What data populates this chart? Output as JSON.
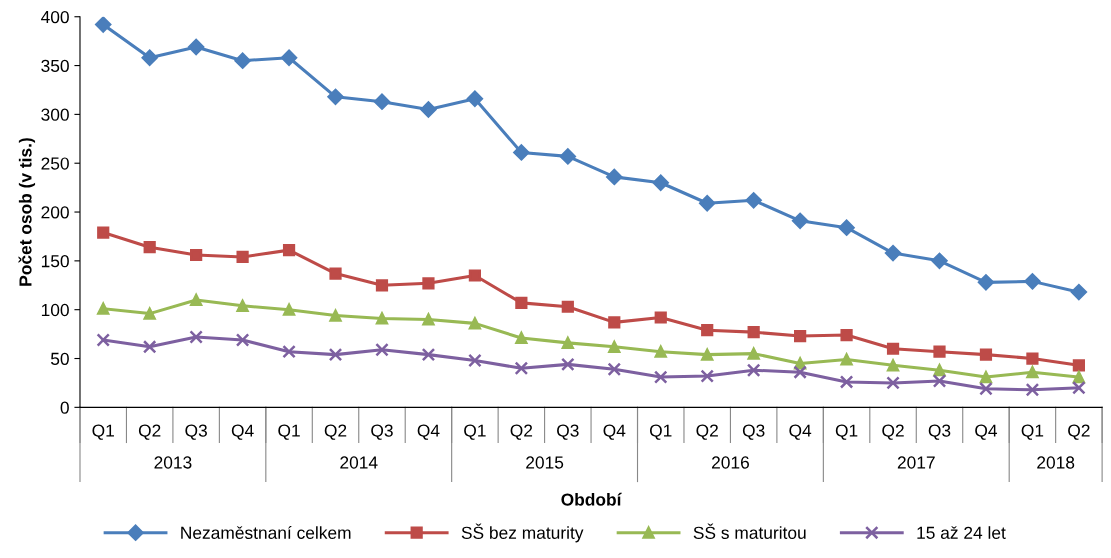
{
  "chart_data": {
    "type": "line",
    "xlabel": "Období",
    "ylabel": "Počet osob (v tis.)",
    "categories": [
      "Q1",
      "Q2",
      "Q3",
      "Q4",
      "Q1",
      "Q2",
      "Q3",
      "Q4",
      "Q1",
      "Q2",
      "Q3",
      "Q4",
      "Q1",
      "Q2",
      "Q3",
      "Q4",
      "Q1",
      "Q2",
      "Q3",
      "Q4",
      "Q1",
      "Q2"
    ],
    "annotations": [
      "2013",
      "2014",
      "2015",
      "2016",
      "2017",
      "2018"
    ],
    "ylim": [
      0,
      400
    ],
    "yticks": [
      0,
      50,
      100,
      150,
      200,
      250,
      300,
      350,
      400
    ],
    "legend": "bottom",
    "series": [
      {
        "name": "Nezaměstnaní celkem",
        "color": "#4a7ebb",
        "marker": "diamond",
        "values": [
          392,
          358,
          369,
          355,
          358,
          318,
          313,
          305,
          316,
          261,
          257,
          236,
          230,
          209,
          212,
          191,
          184,
          158,
          150,
          128,
          129,
          118
        ]
      },
      {
        "name": "SŠ bez maturity",
        "color": "#be4b48",
        "marker": "square",
        "values": [
          179,
          164,
          156,
          154,
          161,
          137,
          125,
          127,
          135,
          107,
          103,
          87,
          92,
          79,
          77,
          73,
          74,
          60,
          57,
          54,
          50,
          43
        ]
      },
      {
        "name": "SŠ s maturitou",
        "color": "#98b954",
        "marker": "triangle",
        "values": [
          101,
          96,
          110,
          104,
          100,
          94,
          91,
          90,
          86,
          71,
          66,
          62,
          57,
          54,
          55,
          45,
          49,
          43,
          38,
          31,
          36,
          31
        ]
      },
      {
        "name": "15 až 24 let",
        "color": "#7d60a0",
        "marker": "cross",
        "values": [
          69,
          62,
          72,
          69,
          57,
          54,
          59,
          54,
          48,
          40,
          44,
          39,
          31,
          32,
          38,
          36,
          26,
          25,
          27,
          19,
          18,
          20
        ]
      }
    ]
  }
}
